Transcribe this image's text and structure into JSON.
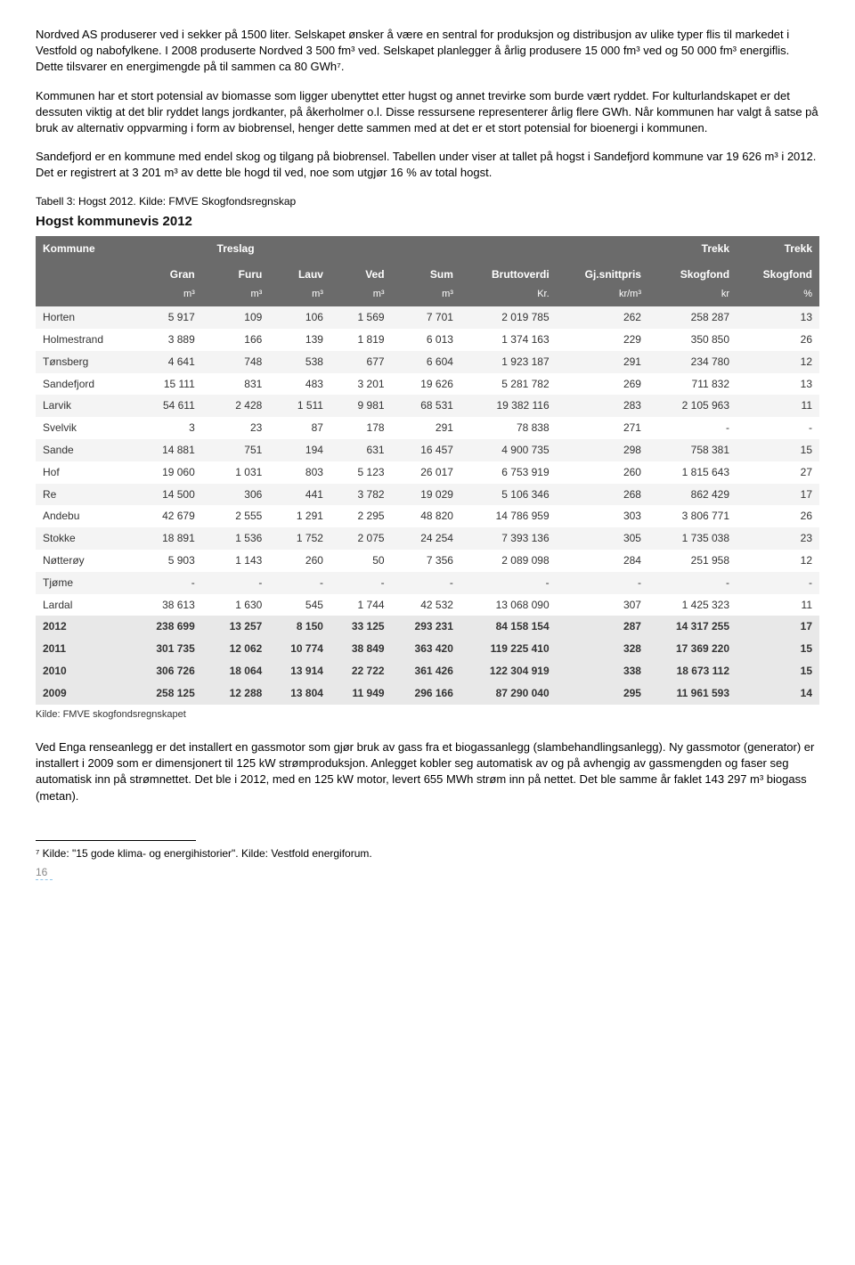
{
  "para1": "Nordved AS produserer ved i sekker på 1500 liter. Selskapet ønsker å være en sentral for produksjon og distribusjon av ulike typer flis til markedet i Vestfold og nabofylkene. I 2008 produserte Nordved 3 500 fm³ ved. Selskapet planlegger å årlig produsere 15 000 fm³ ved og 50 000 fm³ energiflis. Dette tilsvarer en energimengde på til sammen ca 80 GWh⁷.",
  "para2": "Kommunen har et stort potensial av biomasse som ligger ubenyttet etter hugst og annet trevirke som burde vært ryddet. For kulturlandskapet er det dessuten viktig at det blir ryddet langs jordkanter, på åkerholmer o.l.  Disse ressursene representerer årlig flere GWh. Når kommunen har valgt å satse på bruk av alternativ oppvarming i form av biobrensel, henger dette sammen med at det er et stort potensial for bioenergi i kommunen.",
  "para3": "Sandefjord er en kommune med endel skog og tilgang på biobrensel. Tabellen under viser at tallet på hogst i Sandefjord kommune var 19 626 m³ i 2012. Det er registrert at 3 201 m³ av dette ble hogd til ved, noe som utgjør 16 % av total hogst.",
  "caption": "Tabell 3: Hogst 2012. Kilde: FMVE Skogfondsregnskap",
  "table_title": "Hogst kommunevis 2012",
  "head_top": [
    "Kommune",
    "",
    "Treslag",
    "",
    "",
    "",
    "",
    "",
    "Trekk",
    "Trekk"
  ],
  "head_mid": [
    "",
    "Gran",
    "Furu",
    "Lauv",
    "Ved",
    "Sum",
    "Bruttoverdi",
    "Gj.snittpris",
    "Skogfond",
    "Skogfond"
  ],
  "head_sub": [
    "",
    "m³",
    "m³",
    "m³",
    "m³",
    "m³",
    "Kr.",
    "kr/m³",
    "kr",
    "%"
  ],
  "rows": [
    [
      "Horten",
      "5 917",
      "109",
      "106",
      "1 569",
      "7 701",
      "2 019 785",
      "262",
      "258 287",
      "13"
    ],
    [
      "Holmestrand",
      "3 889",
      "166",
      "139",
      "1 819",
      "6 013",
      "1 374 163",
      "229",
      "350 850",
      "26"
    ],
    [
      "Tønsberg",
      "4 641",
      "748",
      "538",
      "677",
      "6 604",
      "1 923 187",
      "291",
      "234 780",
      "12"
    ],
    [
      "Sandefjord",
      "15 111",
      "831",
      "483",
      "3 201",
      "19 626",
      "5 281 782",
      "269",
      "711 832",
      "13"
    ],
    [
      "Larvik",
      "54 611",
      "2 428",
      "1 511",
      "9 981",
      "68 531",
      "19 382 116",
      "283",
      "2 105 963",
      "11"
    ],
    [
      "Svelvik",
      "3",
      "23",
      "87",
      "178",
      "291",
      "78 838",
      "271",
      "",
      ""
    ],
    [
      "Sande",
      "14 881",
      "751",
      "194",
      "631",
      "16 457",
      "4 900 735",
      "298",
      "758 381",
      "15"
    ],
    [
      "Hof",
      "19 060",
      "1 031",
      "803",
      "5 123",
      "26 017",
      "6 753 919",
      "260",
      "1 815 643",
      "27"
    ],
    [
      "Re",
      "14 500",
      "306",
      "441",
      "3 782",
      "19 029",
      "5 106 346",
      "268",
      "862 429",
      "17"
    ],
    [
      "Andebu",
      "42 679",
      "2 555",
      "1 291",
      "2 295",
      "48 820",
      "14 786 959",
      "303",
      "3 806 771",
      "26"
    ],
    [
      "Stokke",
      "18 891",
      "1 536",
      "1 752",
      "2 075",
      "24 254",
      "7 393 136",
      "305",
      "1 735 038",
      "23"
    ],
    [
      "Nøtterøy",
      "5 903",
      "1 143",
      "260",
      "50",
      "7 356",
      "2 089 098",
      "284",
      "251 958",
      "12"
    ],
    [
      "Tjøme",
      "-",
      "-",
      "-",
      "-",
      "-",
      "-",
      "-",
      "-",
      "-"
    ],
    [
      "Lardal",
      "38 613",
      "1 630",
      "545",
      "1 744",
      "42 532",
      "13 068 090",
      "307",
      "1 425 323",
      "11"
    ]
  ],
  "totals": [
    [
      "2012",
      "238 699",
      "13 257",
      "8 150",
      "33 125",
      "293 231",
      "84 158 154",
      "287",
      "14 317 255",
      "17"
    ],
    [
      "2011",
      "301 735",
      "12 062",
      "10 774",
      "38 849",
      "363 420",
      "119 225 410",
      "328",
      "17 369 220",
      "15"
    ],
    [
      "2010",
      "306 726",
      "18 064",
      "13 914",
      "22 722",
      "361 426",
      "122 304 919",
      "338",
      "18 673 112",
      "15"
    ],
    [
      "2009",
      "258 125",
      "12 288",
      "13 804",
      "11 949",
      "296 166",
      "87 290 040",
      "295",
      "11 961 593",
      "14"
    ]
  ],
  "source_line": "Kilde: FMVE skogfondsregnskapet",
  "para4": "Ved Enga renseanlegg er det installert en gassmotor som gjør bruk av gass fra et biogassanlegg (slambehandlingsanlegg). Ny gassmotor (generator) er installert i 2009 som er dimensjonert til 125 kW strømproduksjon. Anlegget kobler seg automatisk av og på avhengig av gassmengden og faser seg automatisk inn på strømnettet. Det ble i 2012, med en 125 kW motor, levert 655 MWh strøm inn på nettet. Det ble samme år faklet 143 297 m³ biogass (metan).",
  "footnote": "⁷ Kilde: \"15 gode klima- og energihistorier\". Kilde: Vestfold energiforum.",
  "page_number": "16"
}
